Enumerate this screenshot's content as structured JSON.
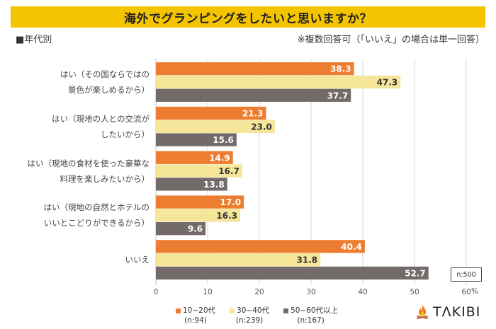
{
  "header": {
    "title": "海外でグランピングをしたいと思いますか？",
    "subtitle_left": "■年代別",
    "subtitle_right": "※複数回答可（「いいえ」の場合は単一回答）"
  },
  "sample_note": "n:500",
  "legend": [
    {
      "name": "10~20代",
      "n": "(n:94)"
    },
    {
      "name": "30~40代",
      "n": "(n:239)"
    },
    {
      "name": "50~60代以上",
      "n": "(n:167)"
    }
  ],
  "logo": {
    "text": "TΛKIBI",
    "icon": "campfire-icon"
  },
  "colors": {
    "title_bg": "#f5c400",
    "series": [
      "#ed7d31",
      "#f5e699",
      "#726b69"
    ],
    "label_on_dark": "#ffffff",
    "label_on_light": "#333333"
  },
  "chart_data": {
    "type": "bar",
    "orientation": "horizontal",
    "title": "海外でグランピングをしたいと思いますか？",
    "categories": [
      [
        "はい（その国ならではの",
        "景色が楽しめるから）"
      ],
      [
        "はい（現地の人との交流が",
        "したいから）"
      ],
      [
        "はい（現地の食材を使った豪華な",
        "料理を楽しみたいから）"
      ],
      [
        "はい（現地の自然とホテルの",
        "いいとこどりができるから）"
      ],
      [
        "いいえ"
      ]
    ],
    "series": [
      {
        "name": "10~20代",
        "values": [
          38.3,
          21.3,
          14.9,
          17.0,
          40.4
        ]
      },
      {
        "name": "30~40代",
        "values": [
          47.3,
          23.0,
          16.7,
          16.3,
          31.8
        ]
      },
      {
        "name": "50~60代以上",
        "values": [
          37.7,
          15.6,
          13.8,
          9.6,
          52.7
        ]
      }
    ],
    "xlim": [
      0,
      60
    ],
    "xticks": [
      "0",
      "10",
      "20",
      "30",
      "40",
      "50",
      "60"
    ],
    "xunit": "%",
    "xlabel": "",
    "ylabel": "",
    "grid": true,
    "legend_position": "bottom"
  }
}
